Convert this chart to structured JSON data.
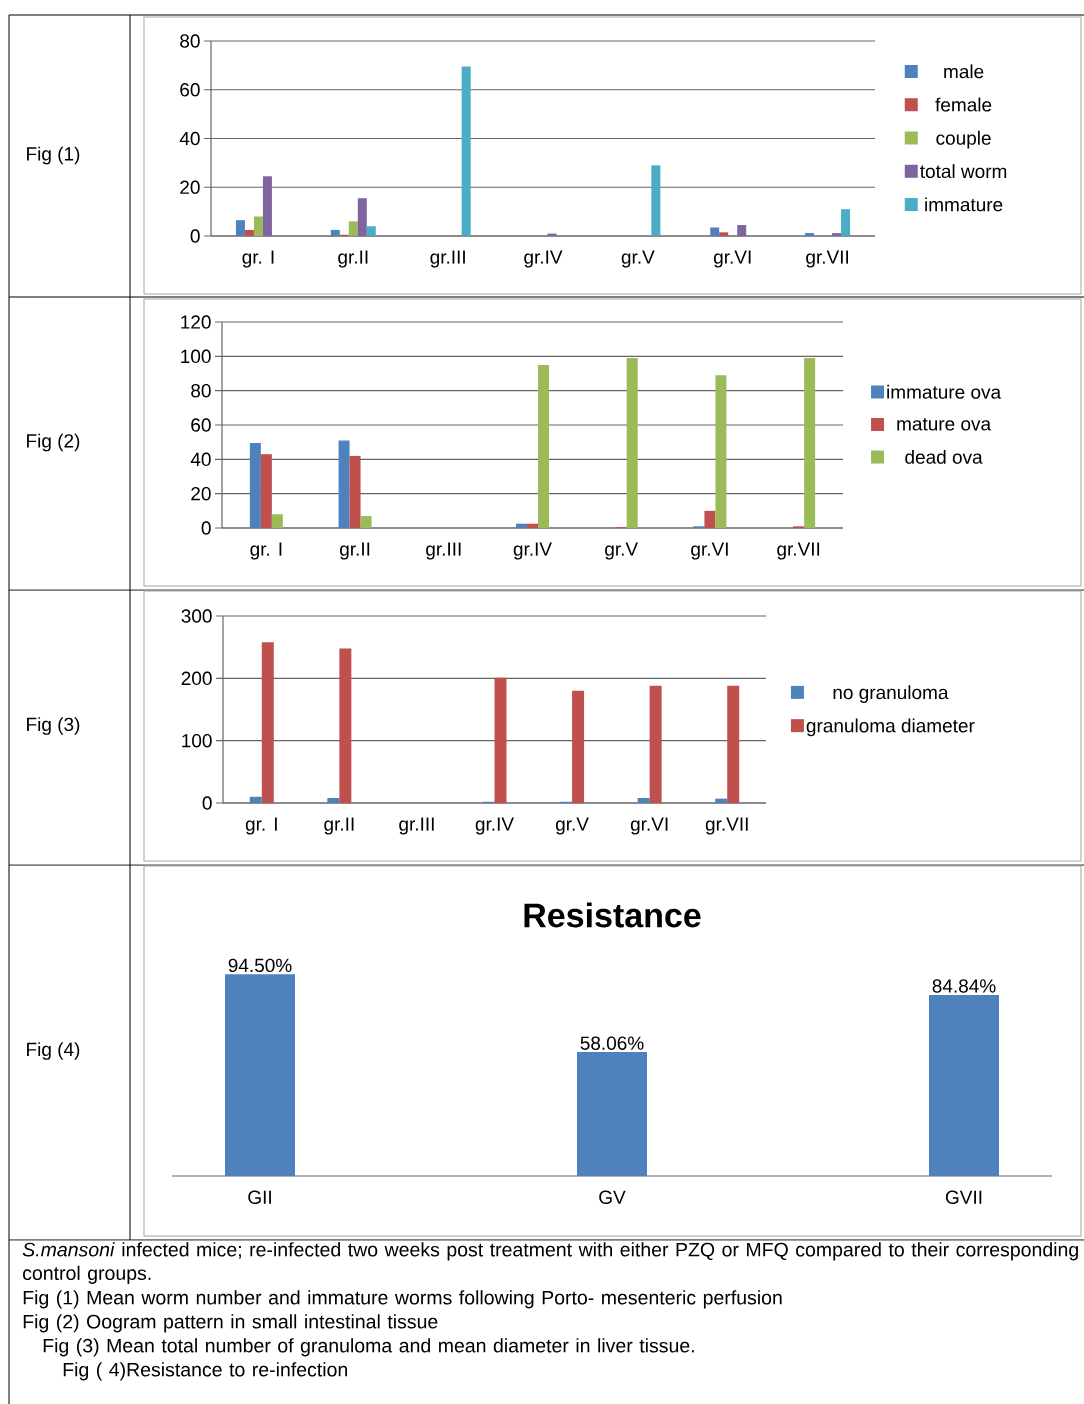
{
  "chart_data": [
    {
      "type": "bar",
      "categories": [
        "gr. I",
        "gr.II",
        "gr.III",
        "gr.IV",
        "gr.V",
        "gr.VI",
        "gr.VII"
      ],
      "series": [
        {
          "name": "male",
          "color": "#4f81bd",
          "values": [
            6.5,
            2.5,
            0,
            0,
            0,
            3.5,
            1.2
          ]
        },
        {
          "name": "female",
          "color": "#c0504d",
          "values": [
            2.5,
            0.5,
            0,
            0,
            0,
            1.5,
            0
          ]
        },
        {
          "name": "couple",
          "color": "#9bbb59",
          "values": [
            8,
            6,
            0,
            0,
            0,
            0,
            0
          ]
        },
        {
          "name": "total worm",
          "color": "#8064a2",
          "values": [
            24.5,
            15.5,
            0,
            1,
            0,
            4.5,
            1.2
          ]
        },
        {
          "name": "immature",
          "color": "#4bacc6",
          "values": [
            0,
            4,
            69.5,
            0,
            29,
            0,
            11
          ]
        }
      ],
      "ylim": [
        0,
        80
      ],
      "yticks": [
        0,
        20,
        40,
        60,
        80
      ],
      "grid": "y",
      "legend": "right",
      "annotations": [
        "Fig (1)"
      ]
    },
    {
      "type": "bar",
      "categories": [
        "gr. I",
        "gr.II",
        "gr.III",
        "gr.IV",
        "gr.V",
        "gr.VI",
        "gr.VII"
      ],
      "series": [
        {
          "name": "immature ova",
          "color": "#4f81bd",
          "values": [
            49.5,
            51,
            0,
            2.5,
            0,
            1,
            0
          ]
        },
        {
          "name": "mature ova",
          "color": "#c0504d",
          "values": [
            43,
            42,
            0,
            2.5,
            0.5,
            10,
            1
          ]
        },
        {
          "name": "dead ova",
          "color": "#9bbb59",
          "values": [
            8,
            7,
            0,
            95,
            99,
            89,
            99
          ]
        }
      ],
      "ylim": [
        0,
        120
      ],
      "yticks": [
        0,
        20,
        40,
        60,
        80,
        100,
        120
      ],
      "grid": "y",
      "legend": "right",
      "annotations": [
        "Fig (2)"
      ]
    },
    {
      "type": "bar",
      "categories": [
        "gr. I",
        "gr.II",
        "gr.III",
        "gr.IV",
        "gr.V",
        "gr.VI",
        "gr.VII"
      ],
      "series": [
        {
          "name": "no granuloma",
          "color": "#4f81bd",
          "values": [
            10,
            8,
            0,
            2,
            2,
            8,
            7
          ]
        },
        {
          "name": "granuloma diameter",
          "color": "#c0504d",
          "values": [
            258,
            248,
            0,
            201,
            180,
            188,
            188
          ]
        }
      ],
      "ylim": [
        0,
        300
      ],
      "yticks": [
        0,
        100,
        200,
        300
      ],
      "grid": "y",
      "legend": "right",
      "annotations": [
        "Fig (3)"
      ]
    },
    {
      "type": "bar",
      "title": "Resistance",
      "categories": [
        "GII",
        "GV",
        "GVII"
      ],
      "values": [
        94.5,
        58.06,
        84.84
      ],
      "value_labels": [
        "94.50%",
        "58.06%",
        "84.84%"
      ],
      "color": "#4f81bd",
      "annotations": [
        "Fig (4)",
        "*S.mansoni* infected mice; re-infected two weeks post treatment with either PZQ or MFQ compared to their corresponding control groups.",
        "Fig (1) Mean worm number and immature worms following Porto- mesenteric perfusion",
        "Fig (2) Oogram pattern in small intestinal tissue",
        "Fig (3) Mean total number of granuloma and mean diameter in liver tissue.",
        "Fig ( 4)Resistance to re-infection"
      ]
    }
  ]
}
